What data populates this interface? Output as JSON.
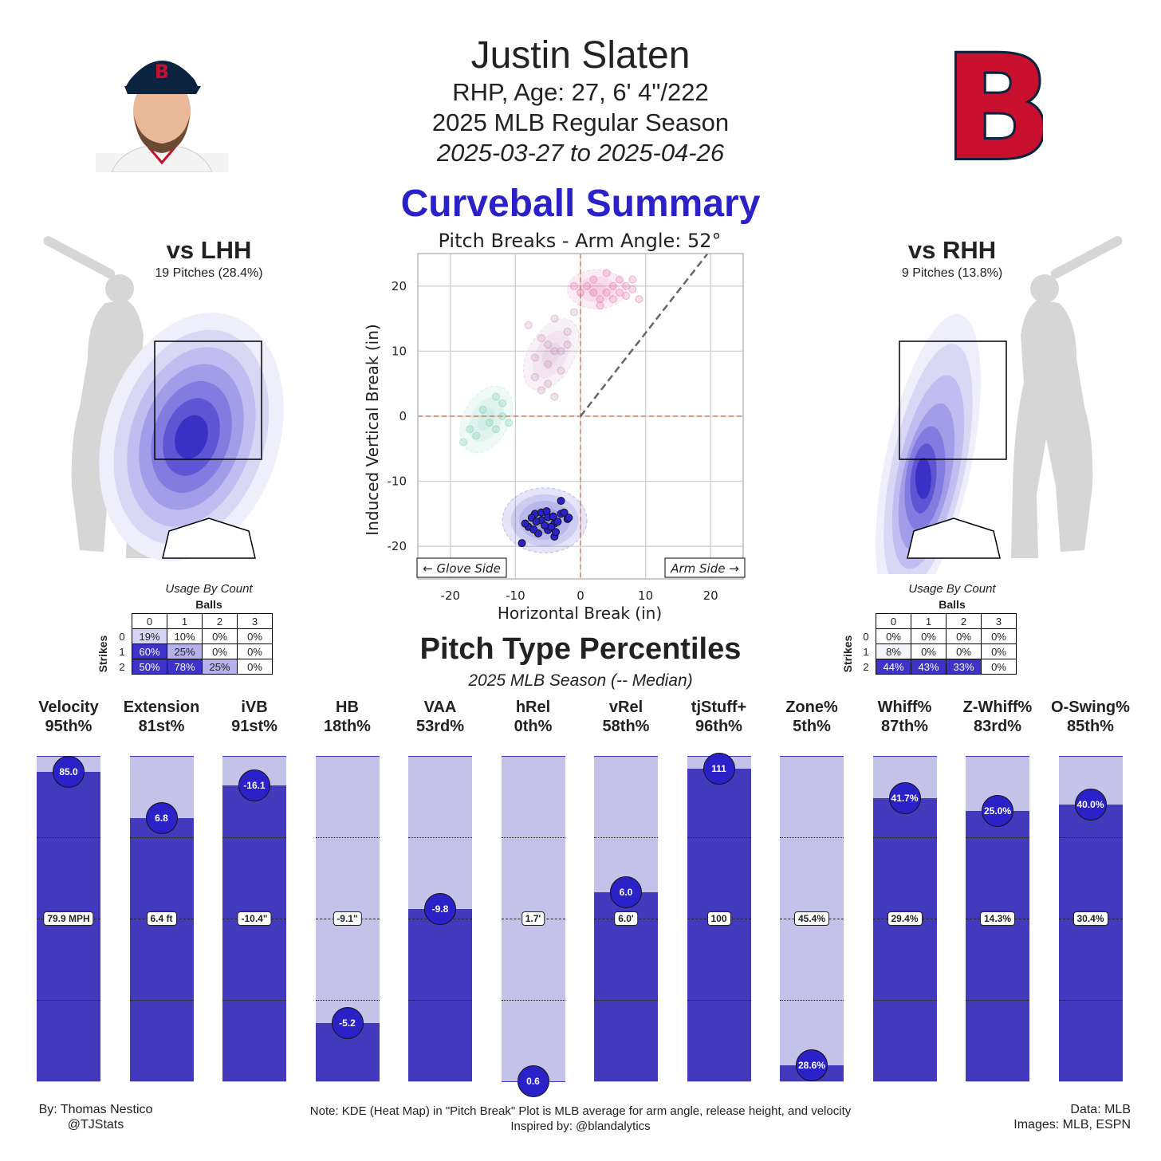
{
  "header": {
    "name": "Justin Slaten",
    "bio": "RHP, Age: 27, 6' 4\"/222",
    "season": "2025 MLB Regular Season",
    "dates": "2025-03-27 to 2025-04-26",
    "team_logo_letter": "B"
  },
  "title": "Curveball Summary",
  "left_panel": {
    "title": "vs LHH",
    "subtitle": "19 Pitches (28.4%)",
    "count_title": "Usage By Count",
    "balls_label": "Balls",
    "strikes_label": "Strikes",
    "ball_headers": [
      "0",
      "1",
      "2",
      "3"
    ],
    "rows": [
      {
        "strike": "0",
        "cells": [
          "19%",
          "10%",
          "0%",
          "0%"
        ]
      },
      {
        "strike": "1",
        "cells": [
          "60%",
          "25%",
          "0%",
          "0%"
        ]
      },
      {
        "strike": "2",
        "cells": [
          "50%",
          "78%",
          "25%",
          "0%"
        ]
      }
    ]
  },
  "right_panel": {
    "title": "vs RHH",
    "subtitle": "9 Pitches (13.8%)",
    "count_title": "Usage By Count",
    "balls_label": "Balls",
    "strikes_label": "Strikes",
    "ball_headers": [
      "0",
      "1",
      "2",
      "3"
    ],
    "rows": [
      {
        "strike": "0",
        "cells": [
          "0%",
          "0%",
          "0%",
          "0%"
        ]
      },
      {
        "strike": "1",
        "cells": [
          "8%",
          "0%",
          "0%",
          "0%"
        ]
      },
      {
        "strike": "2",
        "cells": [
          "44%",
          "43%",
          "33%",
          "0%"
        ]
      }
    ]
  },
  "percentiles": {
    "title": "Pitch Type Percentiles",
    "subtitle": "2025 MLB Season (-- Median)"
  },
  "footer": {
    "left": [
      "By: Thomas Nestico",
      "@TJStats"
    ],
    "center": [
      "Note: KDE (Heat Map) in \"Pitch Break\" Plot is MLB average for arm angle, release height, and velocity",
      "Inspired by: @blandalytics"
    ],
    "right": [
      "Data: MLB",
      "Images: MLB, ESPN"
    ]
  },
  "colors": {
    "accent": "#2a22c8",
    "bar_fill": "#4239bd",
    "bar_bg": "#c4c2e8",
    "curveball": "#2a22c8",
    "pink_cluster": "#e36fa6",
    "mauve_cluster": "#c98fb5",
    "teal_cluster": "#7fd0b3"
  },
  "chart_data": [
    {
      "type": "scatter",
      "title": "Pitch Breaks - Arm Angle: 52°",
      "xlabel": "Horizontal Break (in)",
      "ylabel": "Induced Vertical Break (in)",
      "xlim": [
        -25,
        25
      ],
      "ylim": [
        -25,
        25
      ],
      "xticks": [
        -20,
        -10,
        0,
        10,
        20
      ],
      "yticks": [
        -20,
        -10,
        0,
        10,
        20
      ],
      "grid": true,
      "annotations": [
        "← Glove Side",
        "Arm Side →"
      ],
      "reference_lines": {
        "horizontal_zero": true,
        "vertical_zero": true,
        "arm_angle_deg": 52
      },
      "series": [
        {
          "values": [
            [
              -7,
              -15
            ],
            [
              -6,
              -16
            ],
            [
              -5,
              -15.5
            ],
            [
              -4,
              -16.5
            ],
            [
              -3,
              -15
            ],
            [
              -2,
              -15.8
            ],
            [
              -8,
              -17
            ],
            [
              -6.5,
              -18
            ],
            [
              -5,
              -17.5
            ],
            [
              -4.5,
              -17
            ],
            [
              -3.5,
              -16.2
            ],
            [
              -2.5,
              -14.8
            ],
            [
              -6,
              -14.8
            ],
            [
              -7.5,
              -15.6
            ],
            [
              -5.5,
              -16.8
            ],
            [
              -3,
              -13
            ],
            [
              -4,
              -18.5
            ],
            [
              -9,
              -19.5
            ],
            [
              -8.5,
              -16.5
            ],
            [
              -6.8,
              -16.2
            ],
            [
              -5.2,
              -14.6
            ],
            [
              -4.2,
              -15.4
            ],
            [
              -1.8,
              -15.6
            ],
            [
              -3.8,
              -17.8
            ],
            [
              -7.2,
              -17.4
            ]
          ]
        },
        {
          "values": [
            [
              0,
              19
            ],
            [
              2,
              21
            ],
            [
              3,
              18
            ],
            [
              5,
              20
            ],
            [
              6,
              19
            ],
            [
              7,
              18.5
            ],
            [
              4,
              22
            ],
            [
              1,
              20
            ],
            [
              8,
              19.5
            ],
            [
              9,
              18
            ],
            [
              3,
              17
            ],
            [
              5,
              18
            ],
            [
              6,
              21
            ],
            [
              2,
              19
            ],
            [
              -1,
              20
            ],
            [
              4,
              19
            ],
            [
              7,
              20
            ],
            [
              8,
              21
            ]
          ]
        },
        {
          "values": [
            [
              -8,
              14
            ],
            [
              -7,
              9
            ],
            [
              -6,
              12
            ],
            [
              -5,
              8
            ],
            [
              -4,
              10
            ],
            [
              -3,
              7
            ],
            [
              -2,
              13
            ],
            [
              -5,
              5
            ],
            [
              -6,
              4
            ],
            [
              -4,
              3
            ],
            [
              -3,
              10
            ],
            [
              -7,
              6
            ],
            [
              -1,
              16
            ],
            [
              -4,
              15
            ],
            [
              -2,
              11
            ],
            [
              -5,
              11
            ]
          ]
        },
        {
          "values": [
            [
              -18,
              -4
            ],
            [
              -17,
              -2
            ],
            [
              -15,
              1
            ],
            [
              -13,
              3
            ],
            [
              -12,
              0
            ],
            [
              -14,
              -1
            ],
            [
              -16,
              -3
            ],
            [
              -12,
              2
            ],
            [
              -11,
              -1
            ],
            [
              -13,
              -2
            ]
          ]
        }
      ]
    },
    {
      "type": "bar",
      "categories": [
        "Velocity",
        "Extension",
        "iVB",
        "HB",
        "VAA",
        "hRel",
        "vRel",
        "tjStuff+",
        "Zone%",
        "Whiff%",
        "Z-Whiff%",
        "O-Swing%"
      ],
      "percentile_labels": [
        "95th%",
        "81st%",
        "91st%",
        "18th%",
        "53rd%",
        "0th%",
        "58th%",
        "96th%",
        "5th%",
        "87th%",
        "83rd%",
        "85th%"
      ],
      "percentiles": [
        95,
        81,
        91,
        18,
        53,
        0,
        58,
        96,
        5,
        87,
        83,
        85
      ],
      "values": [
        "85.0",
        "6.8",
        "-16.1",
        "-5.2",
        "-9.8",
        "0.6",
        "6.0",
        "111",
        "28.6%",
        "41.7%",
        "25.0%",
        "40.0%"
      ],
      "medians": [
        "79.9 MPH",
        "6.4 ft",
        "-10.4\"",
        "-9.1\"",
        "",
        "1.7'",
        "6.0'",
        "100",
        "45.4%",
        "29.4%",
        "14.3%",
        "30.4%"
      ],
      "ylim": [
        0,
        100
      ]
    }
  ]
}
